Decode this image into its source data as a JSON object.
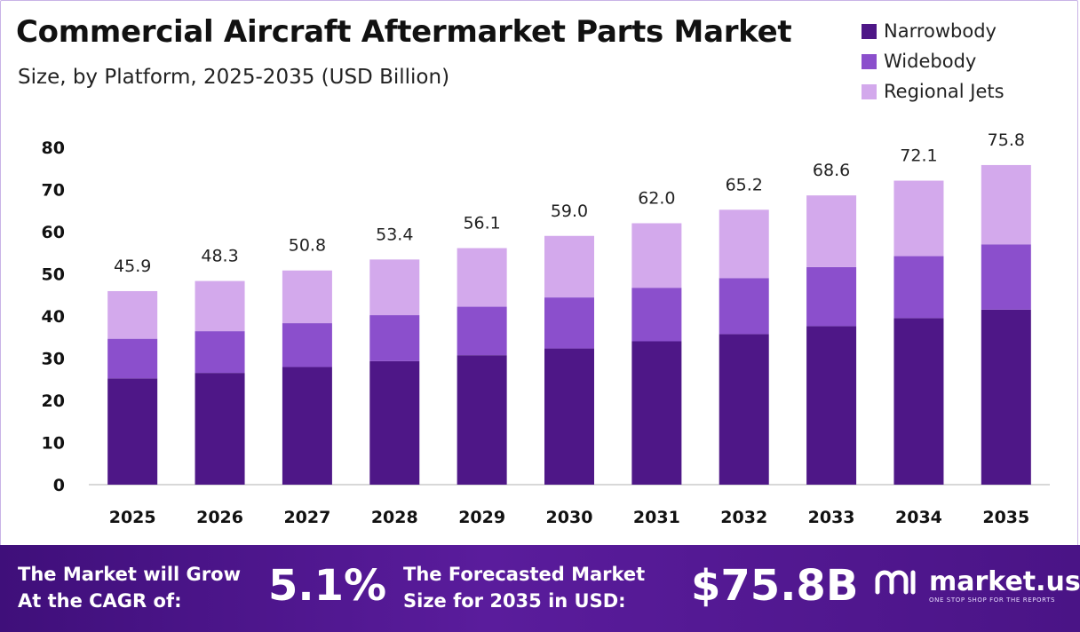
{
  "header": {
    "title": "Commercial Aircraft Aftermarket Parts Market",
    "subtitle": "Size, by Platform, 2025-2035 (USD Billion)"
  },
  "colors": {
    "narrowbody": "#4e1787",
    "widebody": "#8b4fcc",
    "regional": "#d3a9ec",
    "axis": "#cccccc"
  },
  "chart_data": {
    "type": "bar",
    "stacked": true,
    "categories": [
      "2025",
      "2026",
      "2027",
      "2028",
      "2029",
      "2030",
      "2031",
      "2032",
      "2033",
      "2034",
      "2035"
    ],
    "series": [
      {
        "name": "Narrowbody",
        "values": [
          25.2,
          26.5,
          27.9,
          29.3,
          30.7,
          32.3,
          34.0,
          35.7,
          37.6,
          39.5,
          41.5
        ]
      },
      {
        "name": "Widebody",
        "values": [
          9.4,
          9.9,
          10.4,
          10.9,
          11.5,
          12.1,
          12.7,
          13.3,
          14.0,
          14.7,
          15.5
        ]
      },
      {
        "name": "Regional Jets",
        "values": [
          11.3,
          11.9,
          12.5,
          13.2,
          13.9,
          14.6,
          15.3,
          16.2,
          17.0,
          17.9,
          18.8
        ]
      }
    ],
    "totals": [
      "45.9",
      "48.3",
      "50.8",
      "53.4",
      "56.1",
      "59.0",
      "62.0",
      "65.2",
      "68.6",
      "72.1",
      "75.8"
    ],
    "yticks": [
      "0",
      "10",
      "20",
      "30",
      "40",
      "50",
      "60",
      "70",
      "80"
    ],
    "ylim": [
      0,
      80
    ],
    "legend_position": "top-right",
    "grid": false
  },
  "footer": {
    "cagr_label_line1": "The Market will Grow",
    "cagr_label_line2": "At the CAGR of:",
    "cagr_value": "5.1%",
    "forecast_label_line1": "The Forecasted Market",
    "forecast_label_line2": "Size for 2035 in USD:",
    "forecast_value": "$75.8B",
    "brand_name": "market.us",
    "brand_tagline": "ONE STOP SHOP FOR THE REPORTS"
  }
}
